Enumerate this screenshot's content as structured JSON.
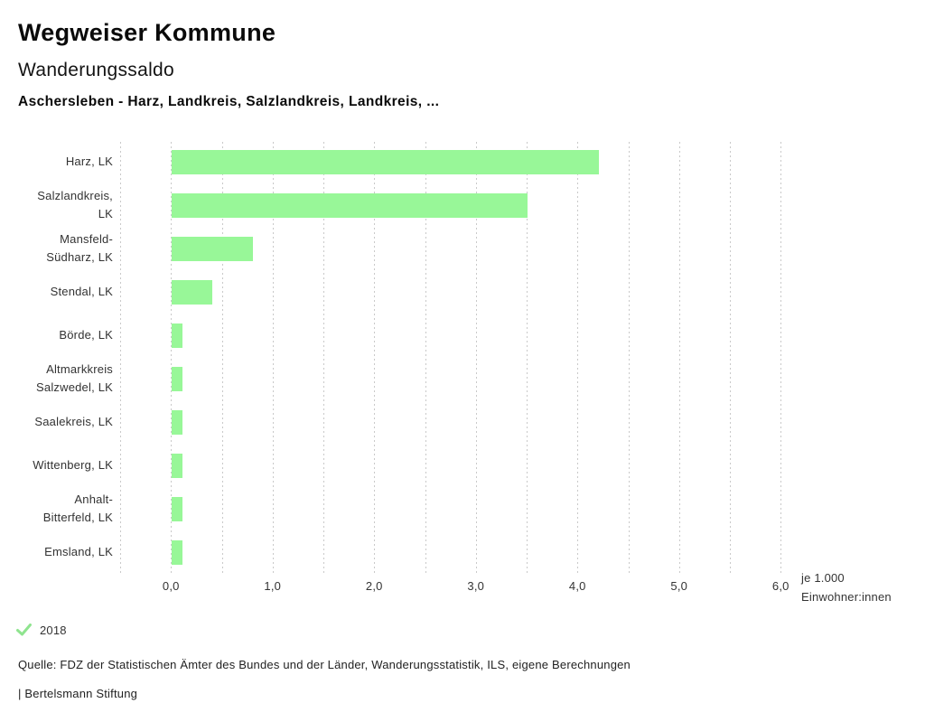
{
  "header": {
    "title": "Wegweiser Kommune",
    "subtitle": "Wanderungssaldo",
    "region_line": "Aschersleben - Harz, Landkreis, Salzlandkreis, Landkreis, ..."
  },
  "chart_data": {
    "type": "bar",
    "orientation": "horizontal",
    "categories": [
      "Harz, LK",
      "Salzlandkreis,\nLK",
      "Mansfeld-\nSüdharz, LK",
      "Stendal, LK",
      "Börde, LK",
      "Altmarkkreis\nSalzwedel, LK",
      "Saalekreis, LK",
      "Wittenberg, LK",
      "Anhalt-\nBitterfeld, LK",
      "Emsland, LK"
    ],
    "series": [
      {
        "name": "2018",
        "values": [
          4.2,
          3.5,
          0.8,
          0.4,
          0.1,
          0.1,
          0.1,
          0.1,
          0.1,
          0.1
        ]
      }
    ],
    "title": "Wanderungssaldo",
    "xlabel": "je 1.000 Einwohner:innen",
    "x_unit_lines": [
      "je 1.000",
      "Einwohner:innen"
    ],
    "xlim": [
      -0.5,
      6.0
    ],
    "grid_step": 0.5,
    "grid": "dotted-vertical",
    "xticks": [
      0,
      1,
      2,
      3,
      4,
      5,
      6
    ],
    "xtick_labels": [
      "0,0",
      "1,0",
      "2,0",
      "3,0",
      "4,0",
      "5,0",
      "6,0"
    ],
    "legend_position": "bottom-left"
  },
  "legend": {
    "year": "2018",
    "check_icon": "checkmark"
  },
  "footer": {
    "source": "Quelle: FDZ der Statistischen Ämter des Bundes und der Länder, Wanderungsstatistik, ILS, eigene Berechnungen",
    "attribution": "| Bertelsmann Stiftung"
  },
  "colors": {
    "bar": "#98f798",
    "check": "#8fe48f",
    "grid": "#c9c9c9",
    "text": "#333333"
  }
}
